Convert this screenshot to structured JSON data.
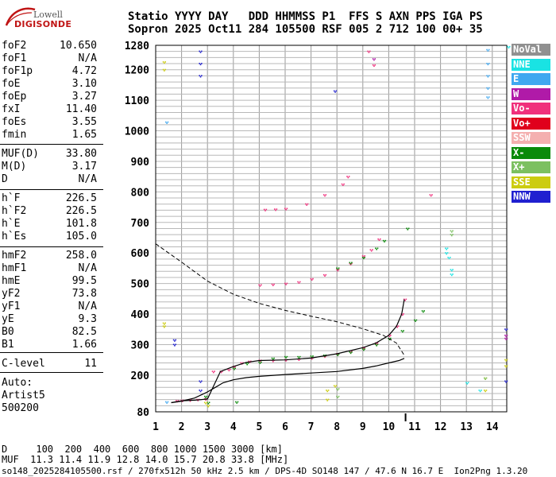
{
  "logo": {
    "line1": "Lowell",
    "line2": "DIGISONDE"
  },
  "header": {
    "line1": "Statio YYYY DAY   DDD HHMMSS P1  FFS S AXN PPS IGA PS",
    "line2": "Sopron 2025 Oct11 284 105500 RSF 005 2 712 100 00+ 35"
  },
  "params": [
    {
      "name": "foF2",
      "value": "10.650"
    },
    {
      "name": "foF1",
      "value": "N/A"
    },
    {
      "name": "foF1p",
      "value": "4.72"
    },
    {
      "name": "foE",
      "value": "3.10"
    },
    {
      "name": "foEp",
      "value": "3.27"
    },
    {
      "name": "fxI",
      "value": "11.40"
    },
    {
      "name": "foEs",
      "value": "3.55"
    },
    {
      "name": "fmin",
      "value": "1.65"
    },
    {
      "name": "MUF(D)",
      "value": "33.80"
    },
    {
      "name": "M(D)",
      "value": "3.17"
    },
    {
      "name": "D",
      "value": "N/A"
    },
    {
      "name": "h`F",
      "value": "226.5"
    },
    {
      "name": "h`F2",
      "value": "226.5"
    },
    {
      "name": "h`E",
      "value": "101.8"
    },
    {
      "name": "h`Es",
      "value": "105.0"
    },
    {
      "name": "hmF2",
      "value": "258.0"
    },
    {
      "name": "hmF1",
      "value": "N/A"
    },
    {
      "name": "hmE",
      "value": "99.5"
    },
    {
      "name": "yF2",
      "value": "73.8"
    },
    {
      "name": "yF1",
      "value": "N/A"
    },
    {
      "name": "yE",
      "value": "9.3"
    },
    {
      "name": "B0",
      "value": "82.5"
    },
    {
      "name": "B1",
      "value": "1.66"
    },
    {
      "name": "C-level",
      "value": "11"
    }
  ],
  "auto": {
    "label": "Auto:",
    "artist": "Artist5",
    "code": "500200"
  },
  "legend": [
    {
      "label": "NoVal",
      "color": "#909090"
    },
    {
      "label": "NNE",
      "color": "#19e3e3"
    },
    {
      "label": "E",
      "color": "#40a8f0"
    },
    {
      "label": "W",
      "color": "#b01aa8"
    },
    {
      "label": "Vo-",
      "color": "#f0307c"
    },
    {
      "label": "Vo+",
      "color": "#e0001c"
    },
    {
      "label": "SSW",
      "color": "#f4b0b0"
    },
    {
      "label": "X-",
      "color": "#0a8a0a"
    },
    {
      "label": "X+",
      "color": "#7cc060"
    },
    {
      "label": "SSE",
      "color": "#cccc10"
    },
    {
      "label": "NNW",
      "color": "#2020d0"
    }
  ],
  "footer": {
    "d_row": "D     100  200  400  600  800 1000 1500 3000 [km]",
    "muf_row": "MUF  11.3 11.4 11.9 12.8 14.0 15.7 20.8 33.8 [MHz]",
    "info": "so148_2025284105500.rsf / 270fx512h 50 kHz 2.5 km / DPS-4D SO148 147 / 47.6 N 16.7 E  Ion2Png 1.3.20"
  },
  "chart_data": {
    "type": "scatter",
    "x_ticks": [
      1,
      2,
      3,
      4,
      5,
      6,
      7,
      8,
      9,
      10,
      11,
      12,
      13,
      14
    ],
    "y_ticks": [
      80,
      200,
      300,
      400,
      500,
      600,
      700,
      800,
      900,
      1000,
      1100,
      1200,
      1280
    ],
    "xlim": [
      1,
      14.6
    ],
    "ylim": [
      80,
      1280
    ],
    "grid": true,
    "foF2_marker": 10.65,
    "series": [
      {
        "name": "Vo-",
        "color": "#f0307c",
        "style": "points",
        "points": [
          [
            1.8,
            116
          ],
          [
            2.0,
            117
          ],
          [
            2.3,
            118
          ],
          [
            2.6,
            120
          ],
          [
            2.9,
            122
          ],
          [
            3.2,
            212
          ],
          [
            3.5,
            212
          ],
          [
            3.8,
            218
          ],
          [
            4.0,
            228
          ],
          [
            4.3,
            240
          ],
          [
            4.6,
            245
          ],
          [
            5.0,
            248
          ],
          [
            5.5,
            248
          ],
          [
            6.0,
            250
          ],
          [
            6.5,
            252
          ],
          [
            7.0,
            256
          ],
          [
            7.5,
            262
          ],
          [
            8.0,
            270
          ],
          [
            8.5,
            278
          ],
          [
            9.0,
            290
          ],
          [
            9.5,
            305
          ],
          [
            10.0,
            330
          ],
          [
            10.3,
            360
          ],
          [
            10.5,
            400
          ],
          [
            10.6,
            448
          ],
          [
            5.0,
            495
          ],
          [
            5.5,
            497
          ],
          [
            6.0,
            500
          ],
          [
            6.5,
            505
          ],
          [
            7.0,
            515
          ],
          [
            7.5,
            528
          ],
          [
            8.0,
            545
          ],
          [
            8.5,
            565
          ],
          [
            9.0,
            590
          ],
          [
            9.3,
            610
          ],
          [
            9.6,
            645
          ],
          [
            5.2,
            742
          ],
          [
            5.6,
            743
          ],
          [
            6.0,
            745
          ],
          [
            6.8,
            760
          ],
          [
            7.5,
            790
          ],
          [
            8.2,
            825
          ],
          [
            8.4,
            850
          ],
          [
            11.6,
            790
          ],
          [
            9.4,
            1215
          ],
          [
            9.2,
            1260
          ]
        ]
      },
      {
        "name": "X-",
        "color": "#0a8a0a",
        "style": "points",
        "points": [
          [
            4.0,
            222
          ],
          [
            4.5,
            238
          ],
          [
            5.0,
            242
          ],
          [
            5.5,
            255
          ],
          [
            6.0,
            260
          ],
          [
            6.5,
            260
          ],
          [
            7.0,
            262
          ],
          [
            7.5,
            265
          ],
          [
            8.0,
            268
          ],
          [
            8.5,
            275
          ],
          [
            9.0,
            285
          ],
          [
            9.5,
            300
          ],
          [
            10.0,
            320
          ],
          [
            10.5,
            345
          ],
          [
            11.0,
            380
          ],
          [
            11.3,
            410
          ],
          [
            8.0,
            550
          ],
          [
            8.5,
            568
          ],
          [
            9.0,
            585
          ],
          [
            9.5,
            615
          ],
          [
            9.8,
            640
          ],
          [
            10.7,
            680
          ],
          [
            4.1,
            112
          ],
          [
            2.9,
            130
          ],
          [
            3.0,
            110
          ]
        ]
      },
      {
        "name": "fit",
        "color": "#000000",
        "style": "line",
        "points": [
          [
            1.6,
            110
          ],
          [
            2.0,
            115
          ],
          [
            2.5,
            125
          ],
          [
            3.0,
            145
          ],
          [
            3.3,
            160
          ],
          [
            3.6,
            175
          ],
          [
            4.0,
            185
          ],
          [
            4.5,
            192
          ],
          [
            5.0,
            196
          ],
          [
            6.0,
            202
          ],
          [
            7.0,
            207
          ],
          [
            8.0,
            212
          ],
          [
            9.0,
            222
          ],
          [
            9.5,
            230
          ],
          [
            10.0,
            240
          ],
          [
            10.4,
            248
          ],
          [
            10.6,
            255
          ]
        ]
      },
      {
        "name": "trace",
        "color": "#000000",
        "style": "line",
        "points": [
          [
            1.6,
            110
          ],
          [
            2.0,
            116
          ],
          [
            2.5,
            118
          ],
          [
            3.0,
            122
          ],
          [
            3.5,
            212
          ],
          [
            4.0,
            228
          ],
          [
            4.5,
            242
          ],
          [
            5.0,
            248
          ],
          [
            6.0,
            250
          ],
          [
            7.0,
            256
          ],
          [
            8.0,
            270
          ],
          [
            9.0,
            290
          ],
          [
            9.5,
            305
          ],
          [
            10.0,
            330
          ],
          [
            10.3,
            360
          ],
          [
            10.5,
            400
          ],
          [
            10.6,
            448
          ]
        ]
      },
      {
        "name": "profile",
        "color": "#000000",
        "style": "dashed",
        "points": [
          [
            1.0,
            630
          ],
          [
            2.0,
            570
          ],
          [
            3.0,
            508
          ],
          [
            4.0,
            465
          ],
          [
            5.0,
            435
          ],
          [
            6.0,
            412
          ],
          [
            7.0,
            393
          ],
          [
            8.0,
            375
          ],
          [
            9.0,
            352
          ],
          [
            9.8,
            330
          ],
          [
            10.3,
            305
          ],
          [
            10.6,
            265
          ]
        ]
      },
      {
        "name": "NNW",
        "color": "#2020d0",
        "style": "points",
        "points": [
          [
            2.7,
            1260
          ],
          [
            2.7,
            1220
          ],
          [
            2.7,
            1180
          ],
          [
            2.7,
            180
          ],
          [
            2.7,
            150
          ],
          [
            7.9,
            1130
          ],
          [
            1.7,
            315
          ],
          [
            1.7,
            300
          ],
          [
            14.5,
            350
          ],
          [
            14.5,
            180
          ]
        ]
      },
      {
        "name": "SSE",
        "color": "#cccc10",
        "style": "points",
        "points": [
          [
            1.3,
            1225
          ],
          [
            1.3,
            1200
          ],
          [
            1.3,
            370
          ],
          [
            1.3,
            360
          ],
          [
            2.9,
            110
          ],
          [
            3.0,
            100
          ],
          [
            14.5,
            250
          ],
          [
            14.5,
            230
          ],
          [
            13.7,
            190
          ],
          [
            13.7,
            150
          ],
          [
            7.6,
            150
          ],
          [
            7.6,
            120
          ],
          [
            7.9,
            165
          ]
        ]
      },
      {
        "name": "NNE",
        "color": "#19e3e3",
        "style": "points",
        "points": [
          [
            12.2,
            615
          ],
          [
            12.2,
            600
          ],
          [
            12.3,
            585
          ],
          [
            12.4,
            545
          ],
          [
            12.4,
            530
          ],
          [
            13.0,
            175
          ],
          [
            13.5,
            150
          ],
          [
            14.6,
            1275
          ]
        ]
      },
      {
        "name": "E",
        "color": "#40a8f0",
        "style": "points",
        "points": [
          [
            13.8,
            1265
          ],
          [
            13.8,
            1220
          ],
          [
            13.8,
            1180
          ],
          [
            13.8,
            1140
          ],
          [
            13.8,
            1110
          ],
          [
            1.4,
            1028
          ],
          [
            1.4,
            112
          ]
        ]
      },
      {
        "name": "X+",
        "color": "#7cc060",
        "style": "points",
        "points": [
          [
            12.4,
            672
          ],
          [
            12.4,
            660
          ],
          [
            8.0,
            155
          ],
          [
            8.0,
            130
          ],
          [
            13.7,
            190
          ]
        ]
      },
      {
        "name": "W",
        "color": "#b01aa8",
        "style": "points",
        "points": [
          [
            9.4,
            1235
          ],
          [
            14.5,
            330
          ],
          [
            14.5,
            320
          ]
        ]
      }
    ]
  }
}
